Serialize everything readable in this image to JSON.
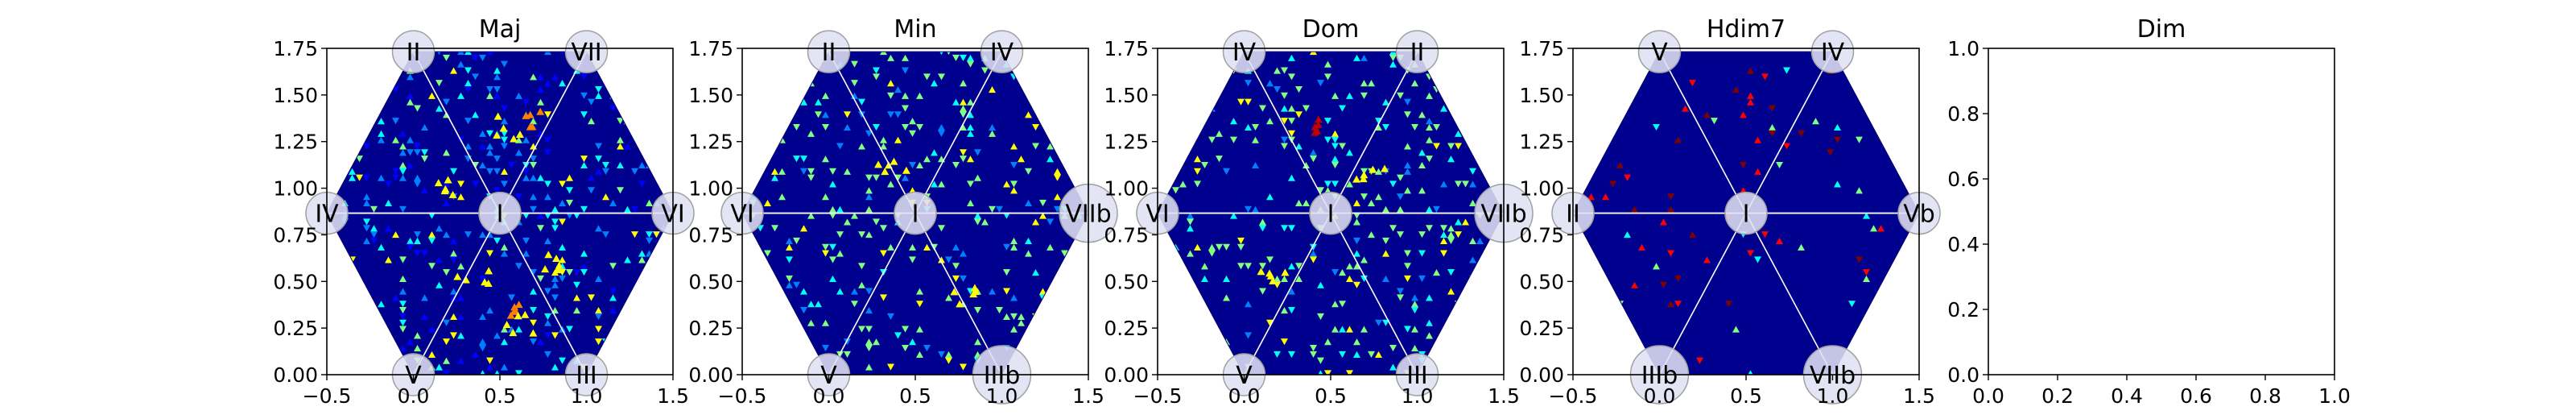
{
  "chart_data": [
    {
      "type": "heatmap",
      "title": "Maj",
      "xlim": [
        -0.5,
        1.5
      ],
      "ylim": [
        0.0,
        1.75
      ],
      "xticks": [
        "−0.5",
        "0.0",
        "0.5",
        "1.0",
        "1.5"
      ],
      "yticks": [
        "0.00",
        "0.25",
        "0.50",
        "0.75",
        "1.00",
        "1.25",
        "1.50",
        "1.75"
      ],
      "nodes": [
        {
          "label": "II",
          "x": 0.0,
          "y": 1.732
        },
        {
          "label": "VII",
          "x": 1.0,
          "y": 1.732
        },
        {
          "label": "IV",
          "x": -0.5,
          "y": 0.866
        },
        {
          "label": "I",
          "x": 0.5,
          "y": 0.866
        },
        {
          "label": "VI",
          "x": 1.5,
          "y": 0.866
        },
        {
          "label": "V",
          "x": 0.0,
          "y": 0.0
        },
        {
          "label": "III",
          "x": 1.0,
          "y": 0.0
        }
      ],
      "density_profile": "mostly blue with cyan/yellow clusters in upper and lower sectors",
      "hot_spots": [
        {
          "x": 0.5,
          "y": 1.35,
          "level": "yellow"
        },
        {
          "x": 0.72,
          "y": 1.38,
          "level": "orange"
        },
        {
          "x": 0.32,
          "y": 0.52,
          "level": "yellow"
        },
        {
          "x": 0.5,
          "y": 0.4,
          "level": "orange"
        },
        {
          "x": 0.8,
          "y": 0.6,
          "level": "yellow"
        },
        {
          "x": 0.2,
          "y": 1.05,
          "level": "yellow"
        },
        {
          "x": 0.6,
          "y": 0.3,
          "level": "yellow"
        }
      ]
    },
    {
      "type": "heatmap",
      "title": "Min",
      "xlim": [
        -0.5,
        1.5
      ],
      "ylim": [
        0.0,
        1.75
      ],
      "xticks": [
        "−0.5",
        "0.0",
        "0.5",
        "1.0",
        "1.5"
      ],
      "yticks": [
        "0.00",
        "0.25",
        "0.50",
        "0.75",
        "1.00",
        "1.25",
        "1.50",
        "1.75"
      ],
      "nodes": [
        {
          "label": "II",
          "x": 0.0,
          "y": 1.732
        },
        {
          "label": "IV",
          "x": 1.0,
          "y": 1.732
        },
        {
          "label": "VI",
          "x": -0.5,
          "y": 0.866
        },
        {
          "label": "I",
          "x": 0.5,
          "y": 0.866
        },
        {
          "label": "VIIb",
          "x": 1.5,
          "y": 0.866
        },
        {
          "label": "V",
          "x": 0.0,
          "y": 0.0
        },
        {
          "label": "IIIb",
          "x": 1.0,
          "y": 0.0
        }
      ],
      "density_profile": "dark blue with green/cyan scatter",
      "hot_spots": [
        {
          "x": 0.35,
          "y": 1.1,
          "level": "yellow"
        },
        {
          "x": 0.75,
          "y": 0.45,
          "level": "yellow"
        }
      ]
    },
    {
      "type": "heatmap",
      "title": "Dom",
      "xlim": [
        -0.5,
        1.5
      ],
      "ylim": [
        0.0,
        1.75
      ],
      "xticks": [
        "−0.5",
        "0.0",
        "0.5",
        "1.0",
        "1.5"
      ],
      "yticks": [
        "0.00",
        "0.25",
        "0.50",
        "0.75",
        "1.00",
        "1.25",
        "1.50",
        "1.75"
      ],
      "nodes": [
        {
          "label": "IV",
          "x": 0.0,
          "y": 1.732
        },
        {
          "label": "II",
          "x": 1.0,
          "y": 1.732
        },
        {
          "label": "VI",
          "x": -0.5,
          "y": 0.866
        },
        {
          "label": "I",
          "x": 0.5,
          "y": 0.866
        },
        {
          "label": "VIIb",
          "x": 1.5,
          "y": 0.866
        },
        {
          "label": "V",
          "x": 0.0,
          "y": 0.0
        },
        {
          "label": "III",
          "x": 1.0,
          "y": 0.0
        }
      ],
      "density_profile": "dark blue with dense green/cyan scatter",
      "hot_spots": [
        {
          "x": 0.45,
          "y": 1.35,
          "level": "red"
        },
        {
          "x": 0.15,
          "y": 0.55,
          "level": "yellow"
        },
        {
          "x": 0.7,
          "y": 1.1,
          "level": "yellow"
        }
      ]
    },
    {
      "type": "heatmap",
      "title": "Hdim7",
      "xlim": [
        -0.5,
        1.5
      ],
      "ylim": [
        0.0,
        1.75
      ],
      "xticks": [
        "−0.5",
        "0.0",
        "0.5",
        "1.0",
        "1.5"
      ],
      "yticks": [
        "0.00",
        "0.25",
        "0.50",
        "0.75",
        "1.00",
        "1.25",
        "1.50",
        "1.75"
      ],
      "nodes": [
        {
          "label": "V",
          "x": 0.0,
          "y": 1.732
        },
        {
          "label": "IV",
          "x": 1.0,
          "y": 1.732
        },
        {
          "label": "II",
          "x": -0.5,
          "y": 0.866
        },
        {
          "label": "I",
          "x": 0.5,
          "y": 0.866
        },
        {
          "label": "Vb",
          "x": 1.5,
          "y": 0.866
        },
        {
          "label": "IIIb",
          "x": 0.0,
          "y": 0.0
        },
        {
          "label": "VIIb",
          "x": 1.0,
          "y": 0.0
        }
      ],
      "density_profile": "very dark blue, sparse dark-red and green points",
      "hot_spots": []
    },
    {
      "type": "scatter",
      "title": "Dim",
      "xlim": [
        0.0,
        1.0
      ],
      "ylim": [
        0.0,
        1.0
      ],
      "xticks": [
        "0.0",
        "0.2",
        "0.4",
        "0.6",
        "0.8",
        "1.0"
      ],
      "yticks": [
        "0.0",
        "0.2",
        "0.4",
        "0.6",
        "0.8",
        "1.0"
      ],
      "nodes": [],
      "empty": true
    }
  ],
  "colors": {
    "axes": "#000000",
    "background_fill": "#00008f",
    "hex_edge": "#000070",
    "grid_lines": "#ffffff",
    "node_fill": "#dfe0f2",
    "node_edge": "#a0a0a0",
    "jet_scale": [
      "#000080",
      "#0000ff",
      "#0080ff",
      "#00ffff",
      "#80ff80",
      "#ffff00",
      "#ff8000",
      "#ff0000",
      "#800000"
    ]
  }
}
